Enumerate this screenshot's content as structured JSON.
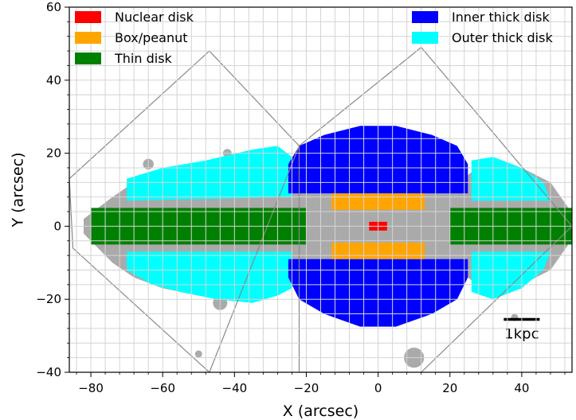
{
  "chart_data": {
    "type": "scatter",
    "xlabel": "X (arcsec)",
    "ylabel": "Y (arcsec)",
    "xlim": [
      -86,
      54
    ],
    "ylim": [
      -40,
      60
    ],
    "xticks": [
      -80,
      -60,
      -40,
      -20,
      0,
      20,
      40
    ],
    "yticks": [
      -40,
      -20,
      0,
      20,
      40,
      60
    ],
    "grid": true,
    "grid_step": 4,
    "legend_position": "top",
    "scale_bar": {
      "label": "1kpc",
      "x1": 35,
      "x2": 45,
      "y": -25.5
    },
    "components": [
      {
        "name": "Nuclear disk",
        "color": "#ff0000"
      },
      {
        "name": "Box/peanut",
        "color": "#ffa500"
      },
      {
        "name": "Thin disk",
        "color": "#008000"
      },
      {
        "name": "Inner thick disk",
        "color": "#0000ff"
      },
      {
        "name": "Outer thick disk",
        "color": "#00ffff"
      }
    ],
    "background_color": "#aaaaaa",
    "footprints": [
      [
        [
          -86,
          13
        ],
        [
          -47,
          48
        ],
        [
          -22,
          22
        ],
        [
          -47,
          -40
        ],
        [
          -85,
          -6
        ]
      ],
      [
        [
          -22,
          22
        ],
        [
          12,
          49
        ],
        [
          54,
          0
        ],
        [
          12,
          -40
        ],
        [
          -22,
          -40
        ]
      ]
    ],
    "regions": {
      "gray_disk": [
        [
          -82,
          2
        ],
        [
          -74,
          8
        ],
        [
          -68,
          12
        ],
        [
          -60,
          15
        ],
        [
          -50,
          17
        ],
        [
          -40,
          17
        ],
        [
          -30,
          18
        ],
        [
          -25,
          14
        ],
        [
          0,
          14
        ],
        [
          25,
          14
        ],
        [
          30,
          18
        ],
        [
          40,
          16
        ],
        [
          48,
          12
        ],
        [
          53,
          5
        ],
        [
          54,
          0
        ],
        [
          53,
          -5
        ],
        [
          48,
          -12
        ],
        [
          40,
          -16
        ],
        [
          30,
          -18
        ],
        [
          25,
          -14
        ],
        [
          0,
          -14
        ],
        [
          -25,
          -14
        ],
        [
          -30,
          -18
        ],
        [
          -40,
          -20
        ],
        [
          -50,
          -19
        ],
        [
          -60,
          -17
        ],
        [
          -68,
          -14
        ],
        [
          -74,
          -10
        ],
        [
          -82,
          -2
        ]
      ],
      "outer_thick_top_left": [
        [
          -70,
          13
        ],
        [
          -60,
          16
        ],
        [
          -48,
          18
        ],
        [
          -35,
          21
        ],
        [
          -28,
          22
        ],
        [
          -24,
          19
        ],
        [
          -24,
          8
        ],
        [
          -70,
          7
        ]
      ],
      "outer_thick_bottom_left": [
        [
          -70,
          -7
        ],
        [
          -24,
          -7
        ],
        [
          -24,
          -17
        ],
        [
          -28,
          -19
        ],
        [
          -35,
          -21
        ],
        [
          -45,
          -20
        ],
        [
          -55,
          -18
        ],
        [
          -63,
          -16
        ],
        [
          -70,
          -12
        ]
      ],
      "outer_thick_top_right": [
        [
          26,
          7
        ],
        [
          48,
          7
        ],
        [
          46,
          12
        ],
        [
          40,
          16
        ],
        [
          32,
          19
        ],
        [
          26,
          18
        ]
      ],
      "outer_thick_bottom_right": [
        [
          26,
          -7
        ],
        [
          26,
          -18
        ],
        [
          32,
          -20
        ],
        [
          40,
          -17
        ],
        [
          46,
          -12
        ],
        [
          48,
          -7
        ]
      ],
      "inner_thick_top": [
        [
          -25,
          17
        ],
        [
          -25,
          9
        ],
        [
          25,
          9
        ],
        [
          25,
          17
        ],
        [
          22,
          22
        ],
        [
          15,
          25
        ],
        [
          5,
          27.5
        ],
        [
          -5,
          27.5
        ],
        [
          -15,
          25
        ],
        [
          -22,
          22
        ]
      ],
      "inner_thick_bottom": [
        [
          -25,
          -9
        ],
        [
          -25,
          -14
        ],
        [
          -22,
          -20
        ],
        [
          -15,
          -24
        ],
        [
          -5,
          -27.5
        ],
        [
          5,
          -27.5
        ],
        [
          15,
          -24
        ],
        [
          22,
          -20
        ],
        [
          25,
          -14
        ],
        [
          25,
          -9
        ]
      ],
      "thin_disk_left": [
        [
          -80,
          5
        ],
        [
          -20,
          5
        ],
        [
          -20,
          -5
        ],
        [
          -80,
          -5
        ]
      ],
      "thin_disk_right": [
        [
          20,
          5
        ],
        [
          54,
          5
        ],
        [
          54,
          -5
        ],
        [
          20,
          -5
        ]
      ],
      "box_peanut_top": [
        [
          -13,
          9
        ],
        [
          13,
          9
        ],
        [
          13,
          4.5
        ],
        [
          -13,
          4.5
        ]
      ],
      "box_peanut_bottom": [
        [
          -13,
          -4.5
        ],
        [
          13,
          -4.5
        ],
        [
          13,
          -9
        ],
        [
          -13,
          -9
        ]
      ],
      "nuclear_disk": [
        [
          -2.5,
          1.2
        ],
        [
          2.5,
          1.2
        ],
        [
          2.5,
          -1.2
        ],
        [
          -2.5,
          -1.2
        ]
      ]
    },
    "blobs": [
      {
        "x": 10,
        "y": -36,
        "r": 2.8
      },
      {
        "x": -44,
        "y": -21,
        "r": 2
      },
      {
        "x": -64,
        "y": 17,
        "r": 1.5
      },
      {
        "x": -42,
        "y": 20,
        "r": 1.2
      },
      {
        "x": 38,
        "y": -25,
        "r": 1
      },
      {
        "x": -50,
        "y": -35,
        "r": 1
      },
      {
        "x": 8,
        "y": 14,
        "r": 0.8
      }
    ]
  }
}
